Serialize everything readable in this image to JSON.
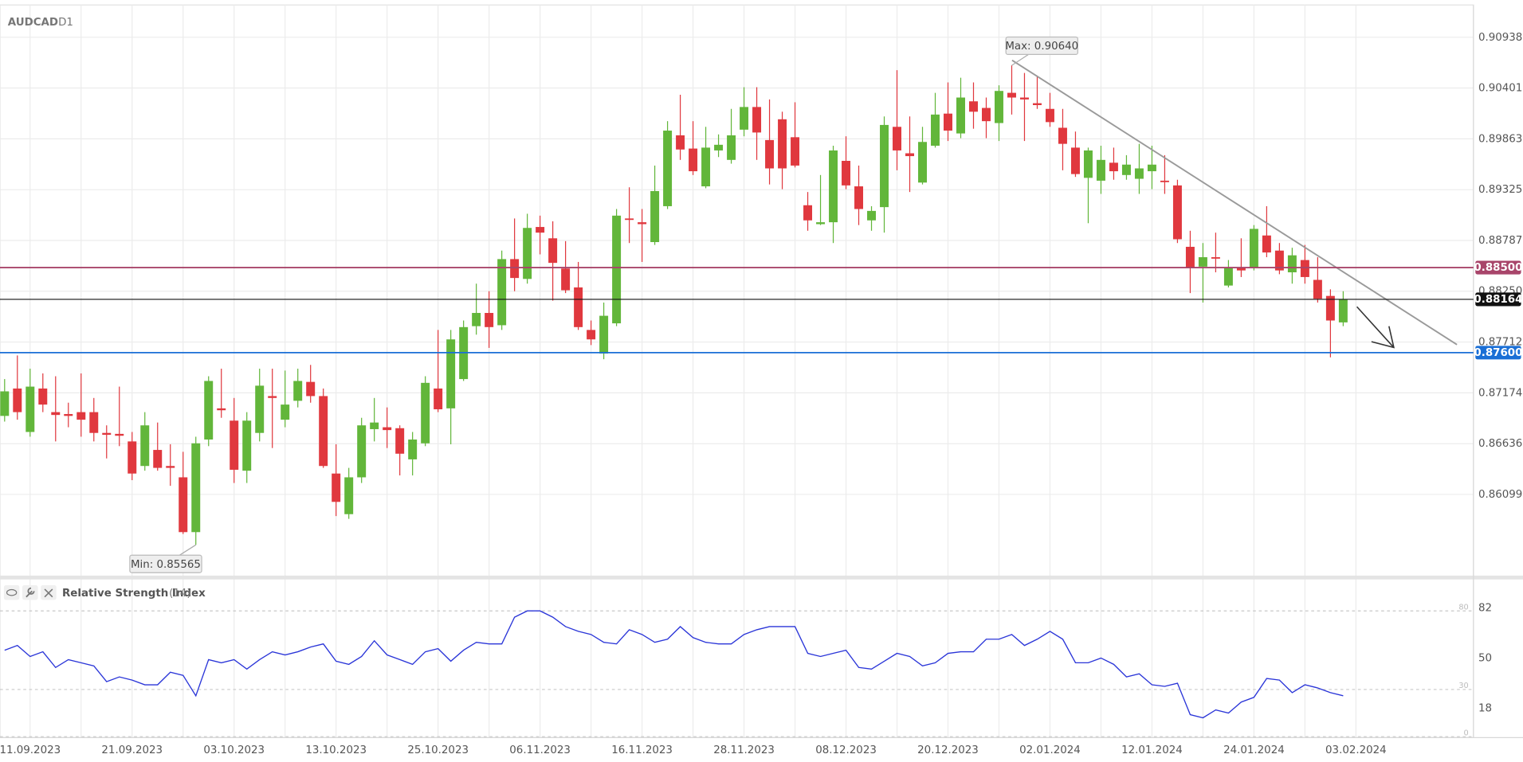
{
  "chart_data": [
    {
      "type": "candlestick",
      "title": "AUDCAD",
      "subtitle": "D1",
      "categories": [
        null,
        null,
        "11.09.2023",
        null,
        null,
        null,
        null,
        null,
        null,
        null,
        "21.09.2023",
        null,
        null,
        null,
        null,
        null,
        null,
        null,
        "03.10.2023",
        null,
        null,
        null,
        null,
        null,
        null,
        null,
        "13.10.2023",
        null,
        null,
        null,
        null,
        null,
        null,
        null,
        "25.10.2023",
        null,
        null,
        null,
        null,
        null,
        null,
        null,
        "06.11.2023",
        null,
        null,
        null,
        null,
        null,
        null,
        null,
        "16.11.2023",
        null,
        null,
        null,
        null,
        null,
        null,
        null,
        "28.11.2023",
        null,
        null,
        null,
        null,
        null,
        null,
        null,
        "08.12.2023",
        null,
        null,
        null,
        null,
        null,
        null,
        null,
        "20.12.2023",
        null,
        null,
        null,
        null,
        null,
        null,
        null,
        "02.01.2024",
        null,
        null,
        null,
        null,
        null,
        null,
        null,
        "12.01.2024",
        null,
        null,
        null,
        null,
        null,
        null,
        null,
        "24.01.2024",
        null,
        null,
        null,
        null,
        null,
        null,
        null,
        "03.02.2024"
      ],
      "open": [
        0.8693,
        0.8722,
        0.8676,
        0.8722,
        0.8697,
        0.8695,
        0.8697,
        0.8697,
        0.8675,
        0.8674,
        0.8666,
        0.864,
        0.8657,
        0.864,
        0.8628,
        0.857,
        0.8668,
        0.8701,
        0.8688,
        0.8635,
        0.8675,
        0.8714,
        0.8689,
        0.8709,
        0.8729,
        0.8714,
        0.8632,
        0.8589,
        0.8628,
        0.8679,
        0.8681,
        0.868,
        0.8647,
        0.8664,
        0.8722,
        0.8701,
        0.8732,
        0.8788,
        0.8802,
        0.8789,
        0.8859,
        0.8838,
        0.8893,
        0.8881,
        0.8849,
        0.8829,
        0.8784,
        0.8759,
        0.8791,
        0.8902,
        0.8898,
        0.8877,
        0.8915,
        0.899,
        0.8976,
        0.8936,
        0.8974,
        0.8964,
        0.8996,
        0.902,
        0.8985,
        0.9007,
        0.8988,
        0.8916,
        0.8896,
        0.8898,
        0.8963,
        0.8936,
        0.89,
        0.8914,
        0.8999,
        0.8971,
        0.894,
        0.8979,
        0.9013,
        0.8992,
        0.9026,
        0.9019,
        0.9003,
        0.9035,
        0.903,
        0.9024,
        0.9018,
        0.8998,
        0.8977,
        0.8945,
        0.8942,
        0.8961,
        0.8948,
        0.8944,
        0.8952,
        0.8942,
        0.8937,
        0.8872,
        0.8851,
        0.8861,
        0.8831,
        0.885,
        0.885,
        0.8884,
        0.8868,
        0.8845,
        0.8858,
        0.8837,
        0.882,
        0.8792,
        null
      ],
      "high": [
        0.8732,
        0.8757,
        0.8743,
        0.8738,
        0.8735,
        0.8707,
        0.8738,
        0.8712,
        0.8683,
        0.8724,
        0.8676,
        0.8697,
        0.8686,
        0.8663,
        0.8655,
        0.8671,
        0.8735,
        0.8743,
        0.8712,
        0.8697,
        0.8743,
        0.8743,
        0.8741,
        0.8743,
        0.8747,
        0.8722,
        0.8663,
        0.8638,
        0.8691,
        0.8712,
        0.8702,
        0.8683,
        0.8676,
        0.8735,
        0.8784,
        0.8784,
        0.8794,
        0.8833,
        0.8825,
        0.8868,
        0.8902,
        0.8907,
        0.8905,
        0.8899,
        0.8878,
        0.8856,
        0.8794,
        0.8813,
        0.8912,
        0.8935,
        0.8912,
        0.8958,
        0.9005,
        0.9033,
        0.9005,
        0.8999,
        0.8991,
        0.9018,
        0.9041,
        0.9041,
        0.9028,
        0.9015,
        0.9025,
        0.893,
        0.8948,
        0.8979,
        0.8989,
        0.8958,
        0.8915,
        0.901,
        0.9059,
        0.901,
        0.8999,
        0.9035,
        0.9046,
        0.9051,
        0.9046,
        0.903,
        0.9043,
        0.9064,
        0.9056,
        0.9053,
        0.9035,
        0.9018,
        0.8994,
        0.8977,
        0.8979,
        0.8977,
        0.8969,
        0.8981,
        0.8979,
        0.8969,
        0.8943,
        0.8889,
        0.8876,
        0.8887,
        0.8858,
        0.8881,
        0.8895,
        0.8915,
        0.8876,
        0.8871,
        0.8874,
        0.8861,
        0.8827,
        0.8825,
        null
      ],
      "low": [
        0.8687,
        0.8689,
        0.8671,
        0.8697,
        0.8666,
        0.8681,
        0.8671,
        0.8666,
        0.8648,
        0.8661,
        0.8625,
        0.8635,
        0.8635,
        0.8619,
        0.8568,
        0.85565,
        0.8661,
        0.8691,
        0.8622,
        0.8622,
        0.8666,
        0.8659,
        0.8681,
        0.8702,
        0.8707,
        0.8638,
        0.8587,
        0.8584,
        0.8622,
        0.8666,
        0.8659,
        0.863,
        0.863,
        0.8661,
        0.8697,
        0.8663,
        0.873,
        0.8779,
        0.8765,
        0.8784,
        0.8825,
        0.8833,
        0.8864,
        0.8815,
        0.8823,
        0.8784,
        0.8768,
        0.8753,
        0.8788,
        0.8876,
        0.8856,
        0.8874,
        0.8912,
        0.8964,
        0.8948,
        0.8934,
        0.8967,
        0.896,
        0.8989,
        0.8964,
        0.8938,
        0.8933,
        0.8956,
        0.8889,
        0.8895,
        0.8876,
        0.8933,
        0.8895,
        0.8889,
        0.8887,
        0.8953,
        0.893,
        0.8938,
        0.8977,
        0.8984,
        0.8987,
        0.8997,
        0.8987,
        0.8984,
        0.9012,
        0.8984,
        0.9018,
        0.8999,
        0.8953,
        0.8946,
        0.8897,
        0.8928,
        0.8943,
        0.8943,
        0.8928,
        0.8933,
        0.8928,
        0.8876,
        0.8823,
        0.8813,
        0.8845,
        0.8829,
        0.884,
        0.8847,
        0.8861,
        0.8843,
        0.8833,
        0.8833,
        0.8813,
        0.8755,
        0.8788,
        null
      ],
      "close": [
        0.8719,
        0.8697,
        0.8724,
        0.8705,
        0.8694,
        0.8693,
        0.8689,
        0.8675,
        0.8673,
        0.8672,
        0.8632,
        0.8683,
        0.8638,
        0.8638,
        0.857,
        0.8664,
        0.873,
        0.8699,
        0.8636,
        0.8688,
        0.8725,
        0.8712,
        0.8705,
        0.873,
        0.8714,
        0.864,
        0.8602,
        0.8628,
        0.8683,
        0.8686,
        0.8678,
        0.8653,
        0.8668,
        0.8728,
        0.87,
        0.8774,
        0.8787,
        0.8802,
        0.8787,
        0.8859,
        0.8839,
        0.8892,
        0.8887,
        0.8855,
        0.8826,
        0.8787,
        0.8774,
        0.8799,
        0.8905,
        0.8901,
        0.8896,
        0.8931,
        0.8995,
        0.8975,
        0.8952,
        0.8977,
        0.898,
        0.899,
        0.902,
        0.8993,
        0.8955,
        0.8955,
        0.8958,
        0.89,
        0.8898,
        0.8974,
        0.8937,
        0.8912,
        0.891,
        0.9001,
        0.8974,
        0.8968,
        0.8983,
        0.9012,
        0.8995,
        0.903,
        0.9015,
        0.9005,
        0.9037,
        0.903,
        0.9028,
        0.9022,
        0.9004,
        0.8981,
        0.8949,
        0.8974,
        0.8964,
        0.8952,
        0.8959,
        0.8955,
        0.8959,
        0.8941,
        0.888,
        0.885,
        0.8861,
        0.886,
        0.885,
        0.8847,
        0.8891,
        0.8866,
        0.8847,
        0.8863,
        0.884,
        0.8817,
        0.8794,
        0.88164,
        null
      ],
      "up_color": "#62b63a",
      "down_color": "#e0383e",
      "ylim": [
        0.8524,
        0.9128
      ],
      "yticks": [
        0.90938,
        0.90401,
        0.89863,
        0.89325,
        0.88787,
        {
          "value": 0.8825,
          "label": "0.88250"
        },
        0.87712,
        0.87174,
        0.86636,
        0.86099
      ],
      "levels": [
        {
          "value": 0.885,
          "label": "0.88500",
          "color": "#a8456a"
        },
        {
          "value": 0.876,
          "label": "0.87600",
          "color": "#1a6fd6"
        }
      ],
      "last_price_color": "#111111",
      "max_label": "Max: 0.90640",
      "min_label": "Min: 0.85565",
      "grid": true
    },
    {
      "type": "line",
      "title": "Relative Strength Index",
      "subtitle": "(14)",
      "color": "#2a35d8",
      "values": [
        55,
        58,
        51,
        54,
        44,
        49,
        47,
        45,
        35,
        38,
        36,
        33,
        33,
        41,
        39,
        26,
        49,
        47,
        49,
        43,
        49,
        54,
        52,
        54,
        57,
        59,
        48,
        46,
        51,
        61,
        52,
        49,
        46,
        54,
        56,
        48,
        55,
        60,
        59,
        59,
        76,
        80,
        80,
        76,
        70,
        67,
        65,
        60,
        59,
        68,
        65,
        60,
        62,
        70,
        63,
        60,
        59,
        59,
        65,
        68,
        70,
        70,
        70,
        53,
        51,
        53,
        55,
        44,
        43,
        48,
        53,
        51,
        45,
        47,
        53,
        54,
        54,
        62,
        62,
        65,
        58,
        62,
        67,
        62,
        47,
        47,
        50,
        46,
        38,
        40,
        33,
        32,
        34,
        14,
        12,
        17,
        15,
        22,
        25,
        37,
        36,
        28,
        33,
        31,
        28,
        26,
        null
      ],
      "ylim": [
        0,
        100
      ],
      "yticks": [
        82,
        50,
        18
      ],
      "levels": [
        80,
        30,
        0
      ]
    }
  ]
}
